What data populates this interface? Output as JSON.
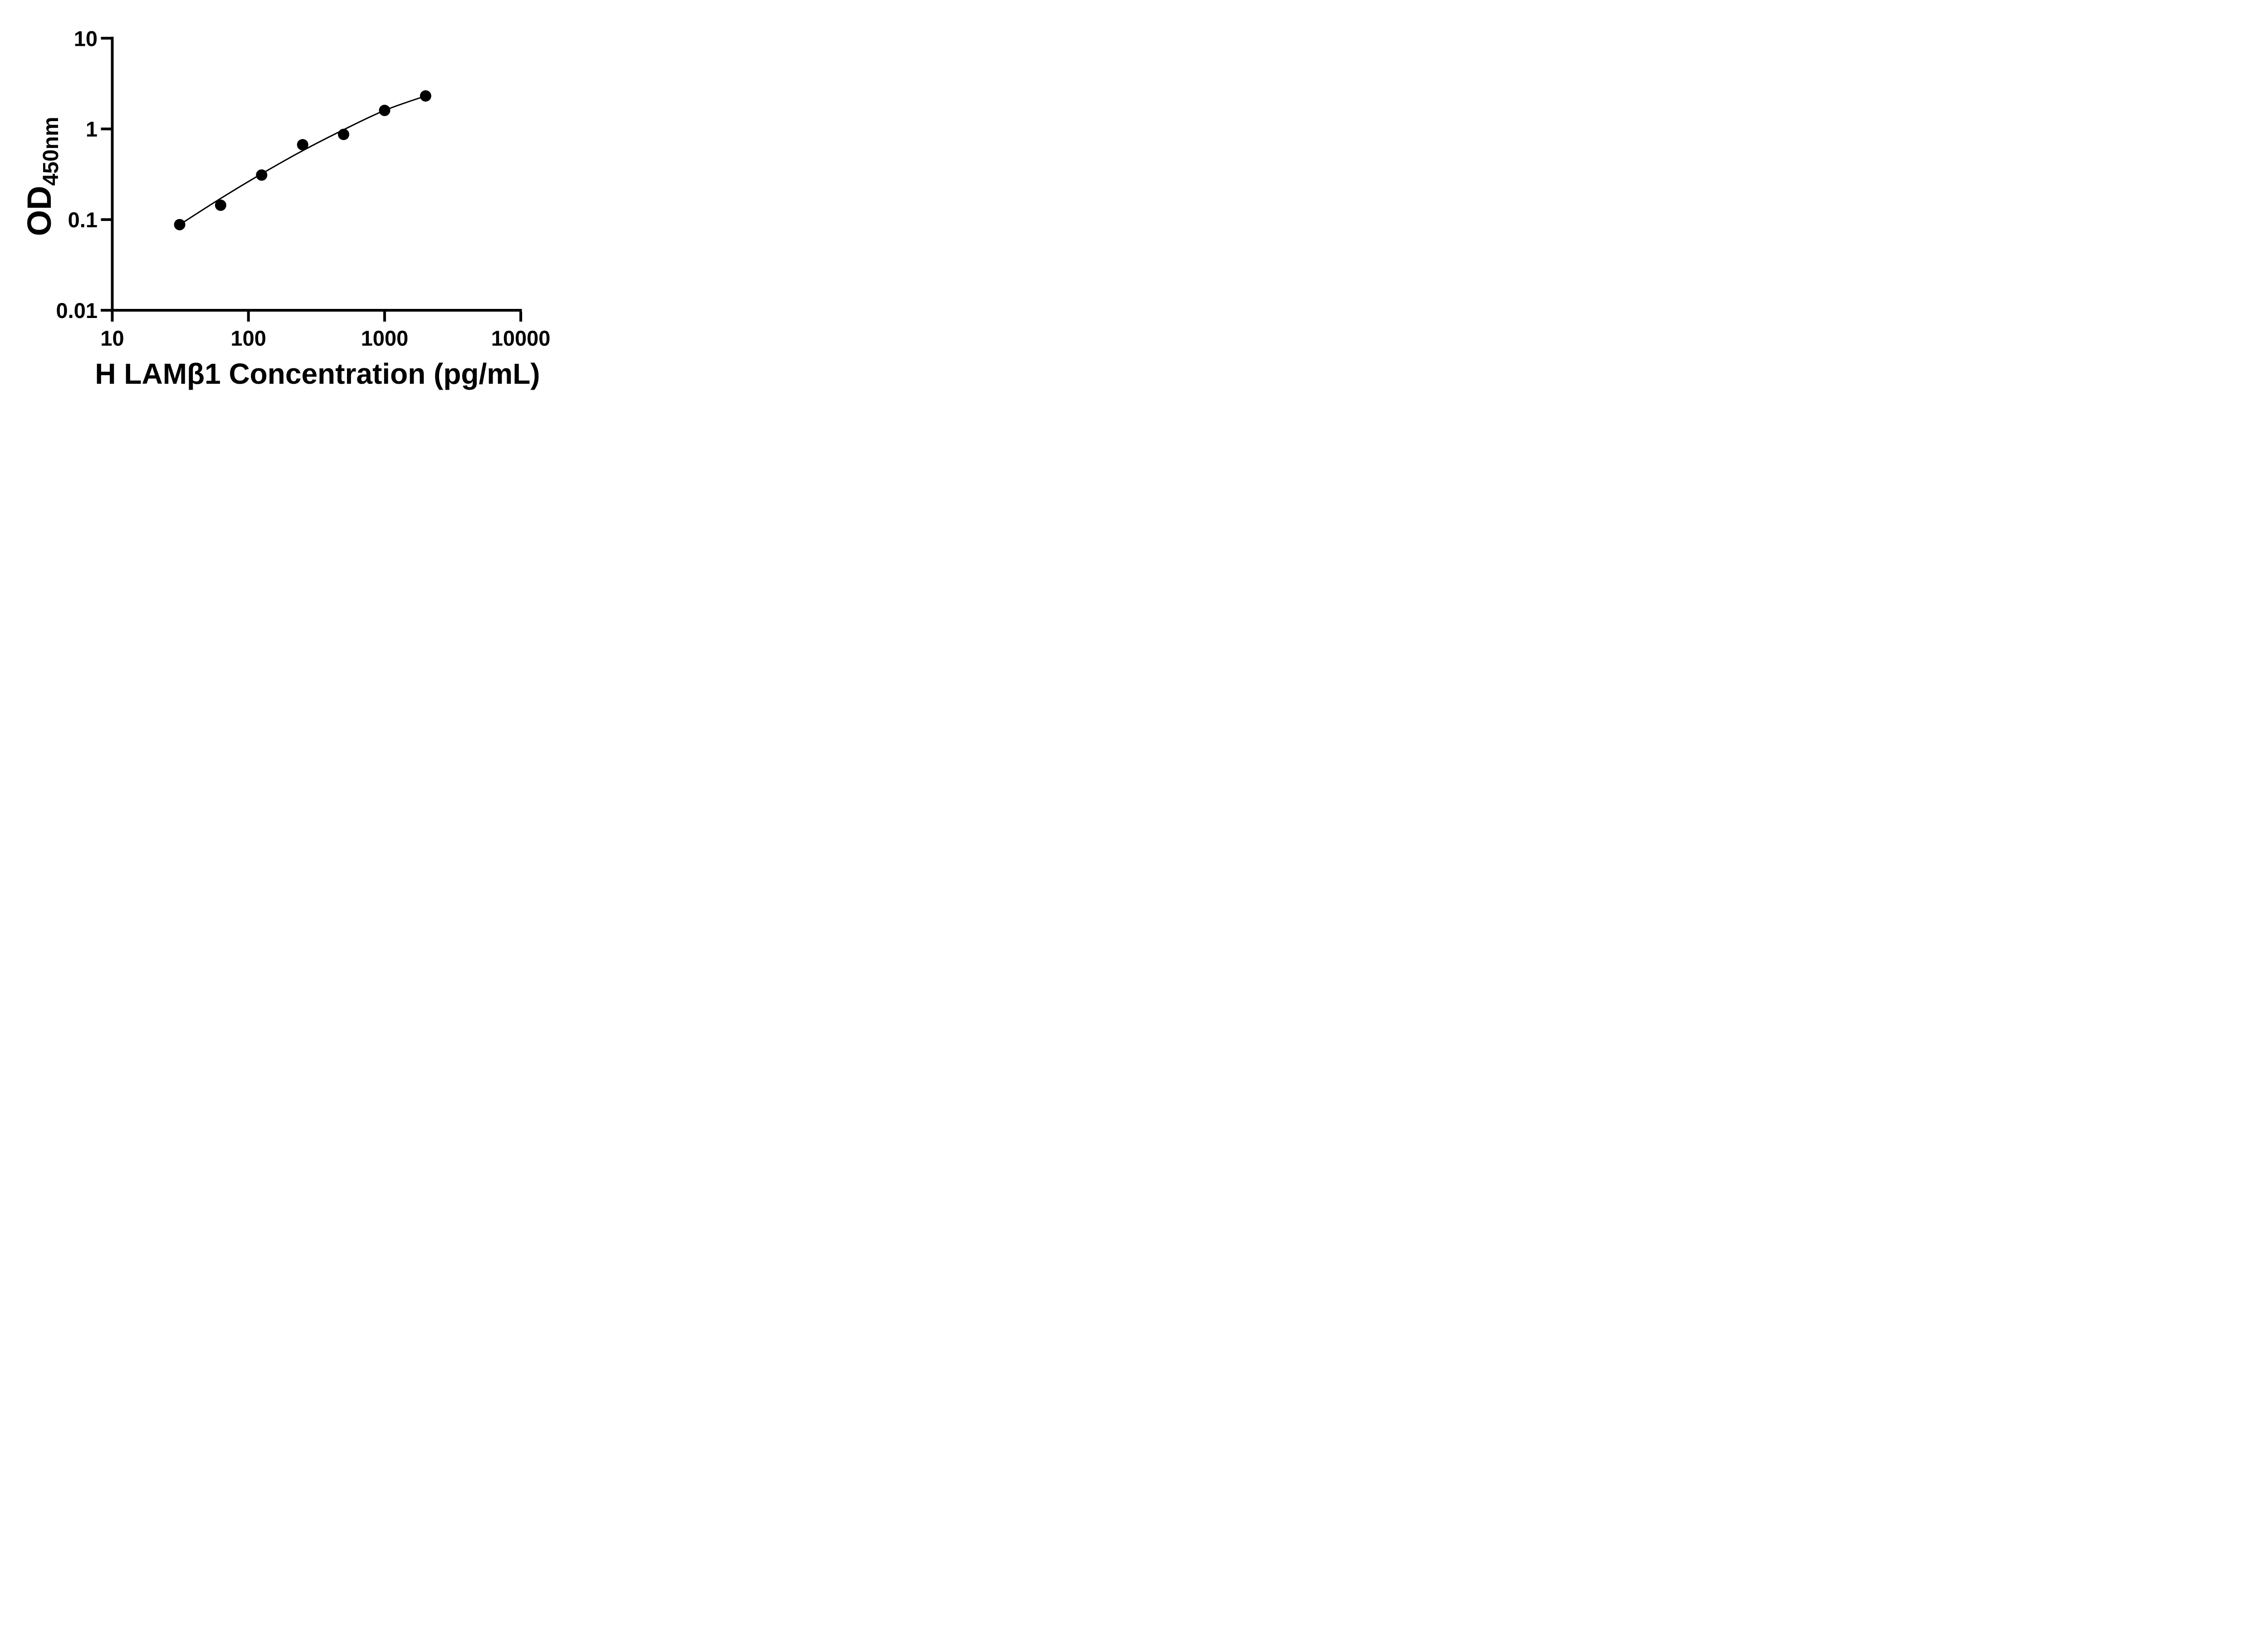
{
  "page": {
    "background": "#ffffff"
  },
  "chart": {
    "y_axis": {
      "label_main": "OD",
      "label_sub": "450nm",
      "tick_labels": [
        "10",
        "1",
        "0.1",
        "0.01"
      ],
      "scale": "log"
    },
    "x_axis": {
      "label": "H LAMβ1 Concentration (pg/mL)",
      "tick_labels": [
        "10",
        "100",
        "1000",
        "10000"
      ],
      "scale": "log"
    }
  },
  "chart_data": {
    "type": "scatter",
    "title": "",
    "xlabel": "H LAMβ1 Concentration (pg/mL)",
    "ylabel": "OD450nm",
    "x": [
      31.25,
      62.5,
      125,
      250,
      500,
      1000,
      2000
    ],
    "y": [
      0.088,
      0.144,
      0.31,
      0.67,
      0.87,
      1.6,
      2.31
    ],
    "curve_fit_y": [
      0.088,
      0.171,
      0.32,
      0.575,
      0.98,
      1.6,
      2.31
    ],
    "x_ticks": [
      10,
      100,
      1000,
      10000
    ],
    "y_ticks": [
      10,
      1,
      0.1,
      0.01
    ],
    "xlim": [
      10,
      10000
    ],
    "ylim": [
      0.01,
      10
    ],
    "x_scale": "log",
    "y_scale": "log",
    "grid": false,
    "legend": false,
    "marker_color": "#000000",
    "line_color": "#000000",
    "axis_color": "#000000"
  }
}
